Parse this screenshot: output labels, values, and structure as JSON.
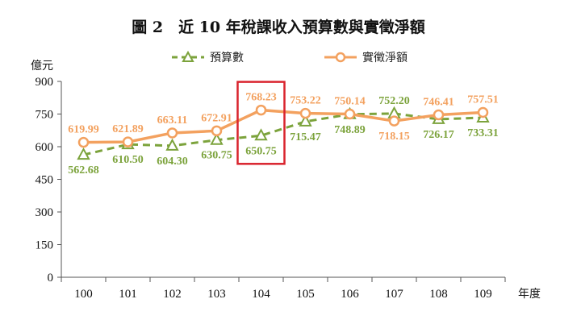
{
  "chart_data": {
    "type": "line",
    "title": "圖 2　近 10 年稅課收入預算數與實徵淨額",
    "ylabel": "億元",
    "xlabel": "年度",
    "categories": [
      "100",
      "101",
      "102",
      "103",
      "104",
      "105",
      "106",
      "107",
      "108",
      "109"
    ],
    "yticks": [
      "0",
      "150",
      "300",
      "450",
      "600",
      "750",
      "900"
    ],
    "ylim": [
      0,
      900
    ],
    "grid": false,
    "legend_position": "top",
    "highlight_category": "104",
    "highlight_color": "#D9232D",
    "series": [
      {
        "name": "預算數",
        "style": "dashed-triangle",
        "color": "#7CA33C",
        "values": [
          562.68,
          610.5,
          604.3,
          630.75,
          650.75,
          715.47,
          748.89,
          752.2,
          726.17,
          733.31
        ],
        "labels": [
          "562.68",
          "610.50",
          "604.30",
          "630.75",
          "650.75",
          "715.47",
          "748.89",
          "752.20",
          "726.17",
          "733.31"
        ]
      },
      {
        "name": "實徵淨額",
        "style": "solid-circle",
        "color": "#F3A15F",
        "values": [
          619.99,
          621.89,
          663.11,
          672.91,
          768.23,
          753.22,
          750.14,
          718.15,
          746.41,
          757.51
        ],
        "labels": [
          "619.99",
          "621.89",
          "663.11",
          "672.91",
          "768.23",
          "753.22",
          "750.14",
          "718.15",
          "746.41",
          "757.51"
        ]
      }
    ]
  }
}
